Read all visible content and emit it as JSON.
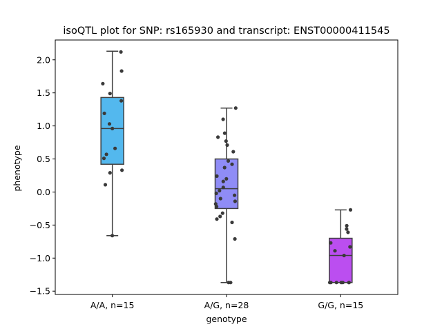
{
  "chart_data": {
    "type": "box",
    "title": "isoQTL plot for SNP: rs165930 and transcript: ENST00000411545",
    "xlabel": "genotype",
    "ylabel": "phenotype",
    "ylim": [
      -1.55,
      2.3
    ],
    "yticks": [
      -1.5,
      -1.0,
      -0.5,
      0.0,
      0.5,
      1.0,
      1.5,
      2.0
    ],
    "ytick_labels": [
      "−1.5",
      "−1.0",
      "−0.5",
      "0.0",
      "0.5",
      "1.0",
      "1.5",
      "2.0"
    ],
    "grid": false,
    "categories": [
      "A/A, n=15",
      "A/G, n=28",
      "G/G, n=15"
    ],
    "boxes": [
      {
        "category": "A/A, n=15",
        "color": "#53b8ee",
        "whisker_low": -0.66,
        "q1": 0.42,
        "median": 0.96,
        "q3": 1.43,
        "whisker_high": 2.13
      },
      {
        "category": "A/G, n=28",
        "color": "#8f8cf6",
        "whisker_low": -1.37,
        "q1": -0.25,
        "median": 0.05,
        "q3": 0.5,
        "whisker_high": 1.27
      },
      {
        "category": "G/G, n=15",
        "color": "#bb4ef0",
        "whisker_low": -1.37,
        "q1": -1.37,
        "median": -0.96,
        "q3": -0.7,
        "whisker_high": -0.27
      }
    ],
    "points": [
      {
        "category": "A/A, n=15",
        "values": [
          2.12,
          1.83,
          1.64,
          1.49,
          1.38,
          1.19,
          1.03,
          0.96,
          0.66,
          0.57,
          0.51,
          0.33,
          0.29,
          0.11,
          -0.66
        ]
      },
      {
        "category": "A/G, n=28",
        "values": [
          1.27,
          1.1,
          0.89,
          0.83,
          0.77,
          0.71,
          0.61,
          0.47,
          0.42,
          0.37,
          0.24,
          0.2,
          0.16,
          0.07,
          0.02,
          -0.02,
          -0.05,
          -0.1,
          -0.14,
          -0.18,
          -0.22,
          -0.32,
          -0.37,
          -0.41,
          -0.46,
          -0.71,
          -1.37,
          -1.37
        ]
      },
      {
        "category": "G/G, n=15",
        "values": [
          -0.27,
          -0.51,
          -0.56,
          -0.61,
          -0.77,
          -0.83,
          -0.89,
          -0.96,
          -1.37,
          -1.37,
          -1.37,
          -1.37,
          -1.37,
          -1.37,
          -1.37
        ]
      }
    ]
  }
}
